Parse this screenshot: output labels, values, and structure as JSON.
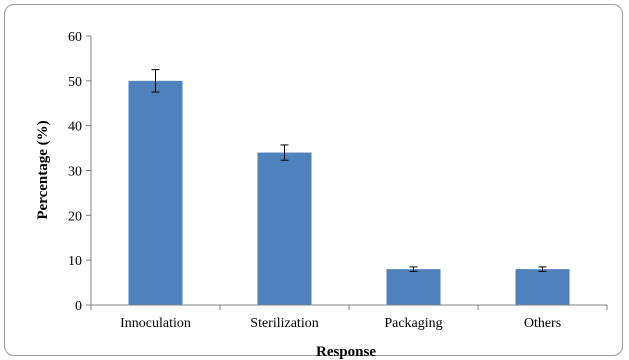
{
  "chart_data": {
    "type": "bar",
    "categories": [
      "Innoculation",
      "Sterilization",
      "Packaging",
      "Others"
    ],
    "values": [
      50,
      34,
      8,
      8
    ],
    "error_bars": [
      2.5,
      1.7,
      0.5,
      0.5
    ],
    "xlabel": "Response",
    "ylabel": "Percentage (%)",
    "ylim": [
      0,
      60
    ],
    "yticks": [
      "0",
      "10",
      "20",
      "30",
      "40",
      "50",
      "60"
    ],
    "grid": false,
    "legend": "none",
    "bar_color": "#4f81bd"
  }
}
